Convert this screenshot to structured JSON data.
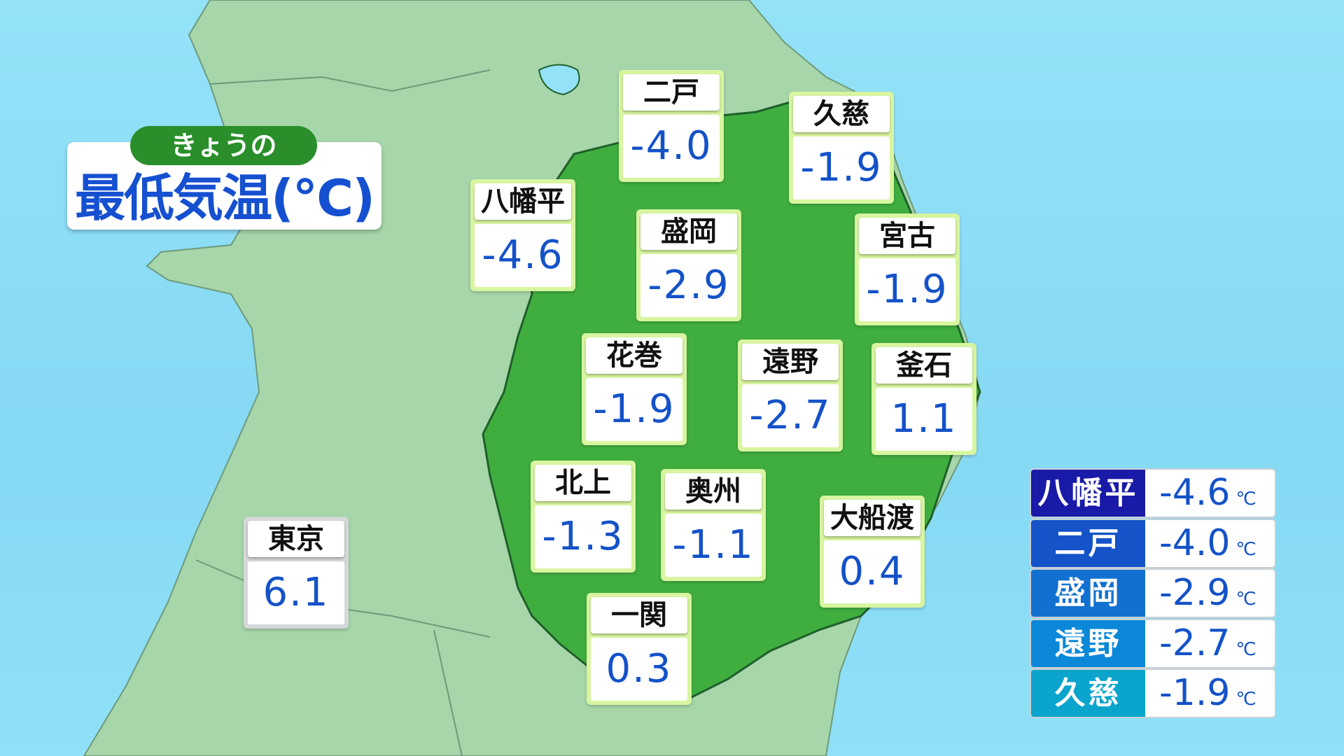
{
  "title": {
    "pill": "きょうの",
    "main": "最低気温(℃)"
  },
  "stations": [
    {
      "name": "二戸",
      "value": "-4.0"
    },
    {
      "name": "久慈",
      "value": "-1.9"
    },
    {
      "name": "八幡平",
      "value": "-4.6"
    },
    {
      "name": "盛岡",
      "value": "-2.9"
    },
    {
      "name": "宮古",
      "value": "-1.9"
    },
    {
      "name": "花巻",
      "value": "-1.9"
    },
    {
      "name": "遠野",
      "value": "-2.7"
    },
    {
      "name": "釜石",
      "value": "1.1"
    },
    {
      "name": "北上",
      "value": "-1.3"
    },
    {
      "name": "奥州",
      "value": "-1.1"
    },
    {
      "name": "大船渡",
      "value": "0.4"
    },
    {
      "name": "東京",
      "value": "6.1"
    },
    {
      "name": "一関",
      "value": "0.3"
    }
  ],
  "ranking": {
    "unit": "℃",
    "rows": [
      {
        "name": "八幡平",
        "value": "-4.6",
        "color": "#1a1aa8"
      },
      {
        "name": "二戸",
        "value": "-4.0",
        "color": "#1553c8"
      },
      {
        "name": "盛岡",
        "value": "-2.9",
        "color": "#1270d0"
      },
      {
        "name": "遠野",
        "value": "-2.7",
        "color": "#0b88d8"
      },
      {
        "name": "久慈",
        "value": "-1.9",
        "color": "#0aa4cc"
      }
    ]
  },
  "colors": {
    "sea": "#8fe0f6",
    "land": "#a6d6aa",
    "iwate": "#3fae3f",
    "title_blue": "#1550d0",
    "pill_green": "#2a8f2a"
  }
}
